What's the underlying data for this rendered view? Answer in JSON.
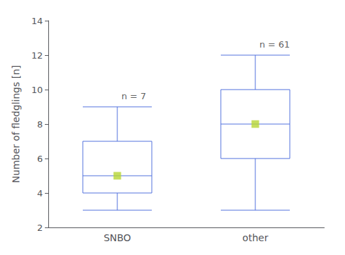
{
  "chart_data": {
    "type": "boxplot",
    "categories": [
      "SNBO",
      "other"
    ],
    "values": [
      [
        3.0,
        4.0,
        5.0,
        7.0,
        9.0
      ],
      [
        3.0,
        6.0,
        8.0,
        10.0,
        12.0
      ]
    ],
    "marker": "square",
    "annotations": [
      "n = 7",
      "n = 61"
    ],
    "ylabel": "Number of fledglings [n]",
    "ylim": [
      2,
      14
    ],
    "yticks": [
      2,
      4,
      6,
      8,
      10,
      12,
      14
    ],
    "grid": false
  }
}
